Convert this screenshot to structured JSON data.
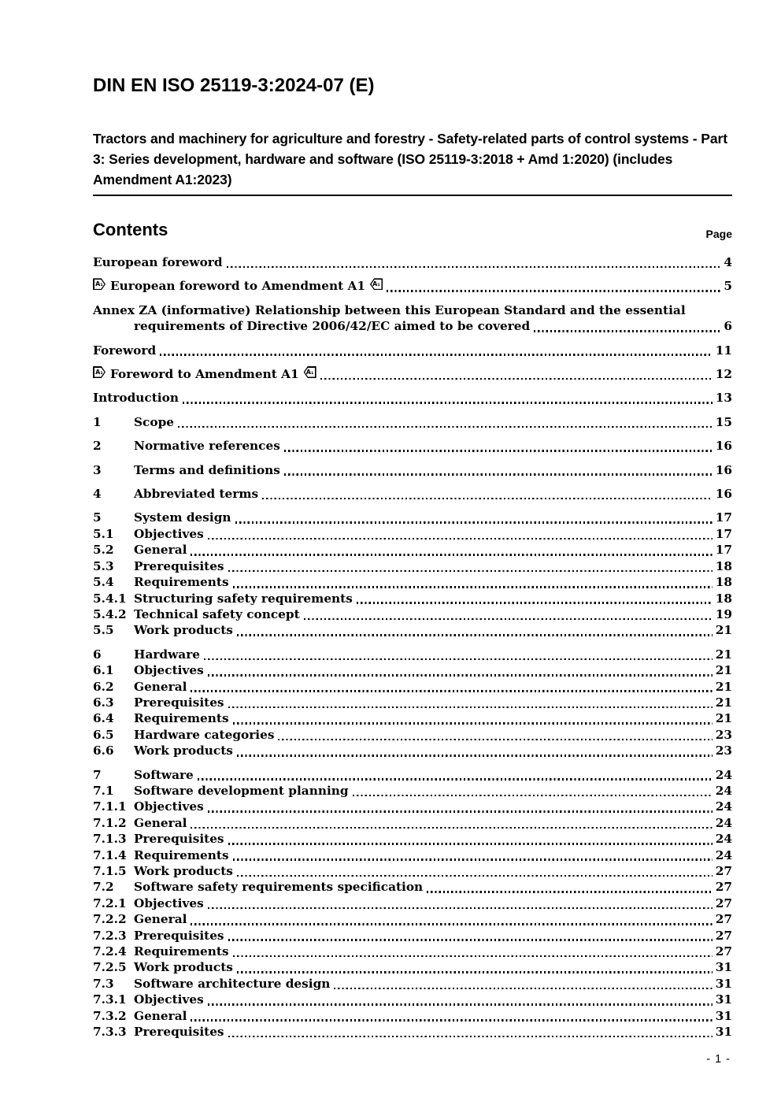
{
  "header": {
    "doc_number": "DIN EN ISO 25119-3:2024-07 (E)",
    "title": "Tractors and machinery for agriculture and forestry - Safety-related parts of control systems - Part 3: Series development, hardware and software (ISO 25119-3:2018 + Amd 1:2020) (includes Amendment A1:2023)"
  },
  "contents": {
    "heading": "Contents",
    "page_column_label": "Page"
  },
  "amendment_marker_text": "A₁",
  "toc": [
    {
      "label": "European foreword",
      "page": "4",
      "top": true
    },
    {
      "label": "European foreword to Amendment A1",
      "page": "5",
      "top": true,
      "a1": true
    },
    {
      "label": "Annex ZA (informative)  Relationship between this European Standard and the essential",
      "label2": "requirements of Directive 2006/42/EC aimed to be covered",
      "page": "6",
      "top": true
    },
    {
      "label": "Foreword",
      "page": "11",
      "top": true
    },
    {
      "label": "Foreword to Amendment A1",
      "page": "12",
      "top": true,
      "a1": true
    },
    {
      "label": "Introduction",
      "page": "13",
      "top": true
    },
    {
      "num": "1",
      "label": "Scope",
      "page": "15",
      "top": true
    },
    {
      "num": "2",
      "label": "Normative references",
      "page": "16",
      "top": true
    },
    {
      "num": "3",
      "label": "Terms and definitions",
      "page": "16",
      "top": true
    },
    {
      "num": "4",
      "label": "Abbreviated terms",
      "page": "16",
      "top": true
    },
    {
      "num": "5",
      "label": "System design",
      "page": "17",
      "top": true
    },
    {
      "num": "5.1",
      "label": "Objectives",
      "page": "17"
    },
    {
      "num": "5.2",
      "label": "General",
      "page": "17"
    },
    {
      "num": "5.3",
      "label": "Prerequisites",
      "page": "18"
    },
    {
      "num": "5.4",
      "label": "Requirements",
      "page": "18"
    },
    {
      "num": "5.4.1",
      "label": "Structuring safety requirements",
      "page": "18"
    },
    {
      "num": "5.4.2",
      "label": "Technical safety concept",
      "page": "19"
    },
    {
      "num": "5.5",
      "label": "Work products",
      "page": "21"
    },
    {
      "num": "6",
      "label": "Hardware",
      "page": "21",
      "top": true
    },
    {
      "num": "6.1",
      "label": "Objectives",
      "page": "21"
    },
    {
      "num": "6.2",
      "label": "General",
      "page": "21"
    },
    {
      "num": "6.3",
      "label": "Prerequisites",
      "page": "21"
    },
    {
      "num": "6.4",
      "label": "Requirements",
      "page": "21"
    },
    {
      "num": "6.5",
      "label": "Hardware categories",
      "page": "23"
    },
    {
      "num": "6.6",
      "label": "Work products",
      "page": "23"
    },
    {
      "num": "7",
      "label": "Software",
      "page": "24",
      "top": true
    },
    {
      "num": "7.1",
      "label": "Software development planning",
      "page": "24"
    },
    {
      "num": "7.1.1",
      "label": "Objectives",
      "page": "24"
    },
    {
      "num": "7.1.2",
      "label": "General",
      "page": "24"
    },
    {
      "num": "7.1.3",
      "label": "Prerequisites",
      "page": "24"
    },
    {
      "num": "7.1.4",
      "label": "Requirements",
      "page": "24"
    },
    {
      "num": "7.1.5",
      "label": "Work products",
      "page": "27"
    },
    {
      "num": "7.2",
      "label": "Software safety requirements specification",
      "page": "27"
    },
    {
      "num": "7.2.1",
      "label": "Objectives",
      "page": "27"
    },
    {
      "num": "7.2.2",
      "label": "General",
      "page": "27"
    },
    {
      "num": "7.2.3",
      "label": "Prerequisites",
      "page": "27"
    },
    {
      "num": "7.2.4",
      "label": "Requirements",
      "page": "27"
    },
    {
      "num": "7.2.5",
      "label": "Work products",
      "page": "31"
    },
    {
      "num": "7.3",
      "label": "Software architecture design",
      "page": "31"
    },
    {
      "num": "7.3.1",
      "label": "Objectives",
      "page": "31"
    },
    {
      "num": "7.3.2",
      "label": "General",
      "page": "31"
    },
    {
      "num": "7.3.3",
      "label": "Prerequisites",
      "page": "31"
    }
  ],
  "footer": {
    "page_number": "- 1 -"
  }
}
